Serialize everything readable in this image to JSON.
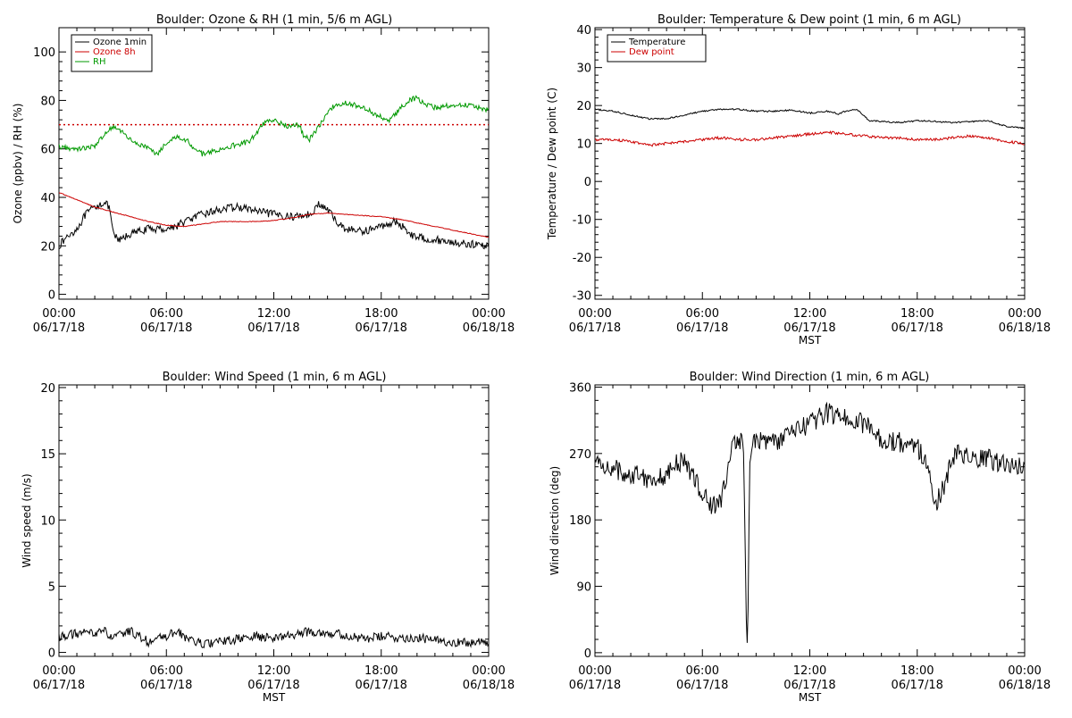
{
  "colors": {
    "black": "#000000",
    "red": "#cc0000",
    "green": "#009900",
    "background": "#ffffff"
  },
  "chart_data": [
    {
      "type": "line",
      "title": "Boulder: Ozone & RH (1 min, 5/6 m AGL)",
      "xlabel": "",
      "ylabel": "Ozone (ppbv) / RH (%)",
      "xlim": [
        "06/17/18 00:00",
        "06/18/18 00:00"
      ],
      "ylim": [
        -2,
        110
      ],
      "yticks": [
        0,
        20,
        40,
        60,
        80,
        100
      ],
      "xtick_labels": [
        {
          "time": "00:00",
          "date": "06/17/18"
        },
        {
          "time": "06:00",
          "date": "06/17/18"
        },
        {
          "time": "12:00",
          "date": "06/17/18"
        },
        {
          "time": "18:00",
          "date": "06/17/18"
        },
        {
          "time": "00:00",
          "date": "06/18/18"
        }
      ],
      "legend_position": "top-left",
      "reference_line": {
        "y": 70,
        "color": "#cc0000",
        "style": "dotted"
      },
      "series": [
        {
          "name": "Ozone 1min",
          "color": "#000000",
          "noise": 1.6,
          "points": [
            [
              0,
              20
            ],
            [
              0.5,
              24
            ],
            [
              1,
              27
            ],
            [
              1.5,
              33
            ],
            [
              2,
              36
            ],
            [
              2.5,
              38
            ],
            [
              2.8,
              36
            ],
            [
              3.0,
              26
            ],
            [
              3.3,
              22
            ],
            [
              4,
              25
            ],
            [
              5,
              27
            ],
            [
              6,
              27
            ],
            [
              6.5,
              28
            ],
            [
              7,
              30
            ],
            [
              8,
              33
            ],
            [
              9,
              35
            ],
            [
              10,
              36
            ],
            [
              10.7,
              35
            ],
            [
              11.2,
              34
            ],
            [
              12,
              33
            ],
            [
              13,
              32
            ],
            [
              14,
              33
            ],
            [
              14.5,
              37
            ],
            [
              15,
              35
            ],
            [
              15.5,
              30
            ],
            [
              16,
              27
            ],
            [
              17,
              26
            ],
            [
              18,
              28
            ],
            [
              18.7,
              30
            ],
            [
              19.2,
              28
            ],
            [
              19.8,
              24
            ],
            [
              20.5,
              23
            ],
            [
              21.5,
              22
            ],
            [
              22.5,
              21
            ],
            [
              24,
              20
            ]
          ]
        },
        {
          "name": "Ozone 8h",
          "color": "#cc0000",
          "noise": 0.15,
          "points": [
            [
              0,
              42
            ],
            [
              1,
              39
            ],
            [
              2,
              36
            ],
            [
              3,
              34
            ],
            [
              4,
              32
            ],
            [
              5,
              30
            ],
            [
              6,
              28.5
            ],
            [
              7,
              28
            ],
            [
              8,
              29
            ],
            [
              9,
              30
            ],
            [
              10,
              30
            ],
            [
              11,
              30
            ],
            [
              12,
              30.5
            ],
            [
              13,
              31.5
            ],
            [
              14,
              33
            ],
            [
              15,
              33.5
            ],
            [
              16,
              33
            ],
            [
              17,
              32.5
            ],
            [
              18,
              32
            ],
            [
              19,
              31
            ],
            [
              20,
              29.5
            ],
            [
              21,
              28
            ],
            [
              22,
              26.5
            ],
            [
              23,
              25
            ],
            [
              24,
              23.5
            ]
          ]
        },
        {
          "name": "RH",
          "color": "#009900",
          "noise": 1.1,
          "points": [
            [
              0,
              61
            ],
            [
              1,
              60
            ],
            [
              2,
              61
            ],
            [
              2.5,
              66
            ],
            [
              3,
              69
            ],
            [
              3.5,
              67
            ],
            [
              4,
              64
            ],
            [
              4.5,
              62
            ],
            [
              5,
              60
            ],
            [
              5.5,
              58
            ],
            [
              5.8,
              61
            ],
            [
              6.2,
              64
            ],
            [
              6.7,
              65
            ],
            [
              7.2,
              63
            ],
            [
              7.6,
              60
            ],
            [
              8,
              58
            ],
            [
              9,
              60
            ],
            [
              10,
              62
            ],
            [
              10.6,
              63
            ],
            [
              11,
              66
            ],
            [
              11.3,
              70
            ],
            [
              12,
              72
            ],
            [
              12.5,
              70
            ],
            [
              13,
              69
            ],
            [
              13.4,
              70
            ],
            [
              13.7,
              65
            ],
            [
              14,
              64
            ],
            [
              14.3,
              67
            ],
            [
              14.6,
              70
            ],
            [
              15,
              75
            ],
            [
              15.4,
              78
            ],
            [
              16,
              79
            ],
            [
              17,
              77
            ],
            [
              18,
              73
            ],
            [
              18.5,
              72
            ],
            [
              19,
              76
            ],
            [
              19.5,
              80
            ],
            [
              20,
              81
            ],
            [
              20.5,
              78
            ],
            [
              21,
              77
            ],
            [
              22,
              78
            ],
            [
              23,
              78
            ],
            [
              24,
              76
            ]
          ]
        }
      ]
    },
    {
      "type": "line",
      "title": "Boulder: Temperature & Dew point (1 min, 6 m AGL)",
      "xlabel": "MST",
      "ylabel": "Temperature / Dew point (C)",
      "xlim": [
        "06/17/18 00:00",
        "06/18/18 00:00"
      ],
      "ylim": [
        -31,
        40.5
      ],
      "yticks": [
        -30,
        -20,
        -10,
        0,
        10,
        20,
        30,
        40
      ],
      "xtick_labels": [
        {
          "time": "00:00",
          "date": "06/17/18"
        },
        {
          "time": "06:00",
          "date": "06/17/18"
        },
        {
          "time": "12:00",
          "date": "06/17/18"
        },
        {
          "time": "18:00",
          "date": "06/17/18"
        },
        {
          "time": "00:00",
          "date": "06/18/18"
        }
      ],
      "legend_position": "top-left",
      "series": [
        {
          "name": "Temperature",
          "color": "#000000",
          "noise": 0.2,
          "points": [
            [
              0,
              19
            ],
            [
              1,
              18.5
            ],
            [
              2,
              17.5
            ],
            [
              3,
              16.5
            ],
            [
              4,
              16.5
            ],
            [
              5,
              17.5
            ],
            [
              6,
              18.5
            ],
            [
              7,
              19
            ],
            [
              8,
              19
            ],
            [
              9,
              18.5
            ],
            [
              10,
              18.5
            ],
            [
              11,
              18.8
            ],
            [
              12,
              18
            ],
            [
              13,
              18.5
            ],
            [
              13.6,
              17.8
            ],
            [
              14,
              18.5
            ],
            [
              14.6,
              19
            ],
            [
              15,
              17.5
            ],
            [
              15.3,
              16
            ],
            [
              16,
              15.8
            ],
            [
              17,
              15.5
            ],
            [
              18,
              16
            ],
            [
              19,
              15.8
            ],
            [
              20,
              15.5
            ],
            [
              21,
              15.8
            ],
            [
              22,
              16
            ],
            [
              22.6,
              15
            ],
            [
              23,
              14.5
            ],
            [
              24,
              14
            ]
          ]
        },
        {
          "name": "Dew point",
          "color": "#cc0000",
          "noise": 0.35,
          "points": [
            [
              0,
              11
            ],
            [
              1,
              11
            ],
            [
              2,
              10.5
            ],
            [
              3,
              9.5
            ],
            [
              4,
              10
            ],
            [
              5,
              10.5
            ],
            [
              6,
              11
            ],
            [
              7,
              11.5
            ],
            [
              8,
              11
            ],
            [
              9,
              11
            ],
            [
              10,
              11.5
            ],
            [
              11,
              12
            ],
            [
              12,
              12.5
            ],
            [
              13,
              13
            ],
            [
              14,
              12.5
            ],
            [
              15,
              12
            ],
            [
              16,
              11.5
            ],
            [
              17,
              11.5
            ],
            [
              18,
              11
            ],
            [
              19,
              11
            ],
            [
              20,
              11.5
            ],
            [
              21,
              12
            ],
            [
              22,
              11.5
            ],
            [
              23,
              10.5
            ],
            [
              24,
              10
            ]
          ]
        }
      ]
    },
    {
      "type": "line",
      "title": "Boulder: Wind Speed (1 min, 6 m AGL)",
      "xlabel": "MST",
      "ylabel": "Wind speed (m/s)",
      "xlim": [
        "06/17/18 00:00",
        "06/18/18 00:00"
      ],
      "ylim": [
        -0.3,
        20.2
      ],
      "yticks": [
        0,
        5,
        10,
        15,
        20
      ],
      "xtick_labels": [
        {
          "time": "00:00",
          "date": "06/17/18"
        },
        {
          "time": "06:00",
          "date": "06/17/18"
        },
        {
          "time": "12:00",
          "date": "06/17/18"
        },
        {
          "time": "18:00",
          "date": "06/17/18"
        },
        {
          "time": "00:00",
          "date": "06/18/18"
        }
      ],
      "legend_position": "none",
      "series": [
        {
          "name": "",
          "color": "#000000",
          "noise": 0.35,
          "points": [
            [
              0,
              1.2
            ],
            [
              1,
              1.4
            ],
            [
              2,
              1.5
            ],
            [
              2.5,
              1.7
            ],
            [
              3,
              1.0
            ],
            [
              3.5,
              1.4
            ],
            [
              4,
              1.6
            ],
            [
              4.5,
              1.2
            ],
            [
              5,
              0.8
            ],
            [
              6,
              1.2
            ],
            [
              6.5,
              1.6
            ],
            [
              7,
              1.2
            ],
            [
              8,
              0.6
            ],
            [
              9,
              0.8
            ],
            [
              10,
              1.0
            ],
            [
              11,
              1.2
            ],
            [
              12,
              1.1
            ],
            [
              13,
              1.3
            ],
            [
              14,
              1.6
            ],
            [
              15,
              1.5
            ],
            [
              16,
              1.3
            ],
            [
              17,
              1.0
            ],
            [
              18,
              1.2
            ],
            [
              19,
              1.1
            ],
            [
              20,
              1.1
            ],
            [
              21,
              0.9
            ],
            [
              22,
              0.8
            ],
            [
              23,
              0.7
            ],
            [
              24,
              0.8
            ]
          ]
        }
      ]
    },
    {
      "type": "line",
      "title": "Boulder: Wind Direction (1 min, 6 m AGL)",
      "xlabel": "MST",
      "ylabel": "Wind direction (deg)",
      "xlim": [
        "06/17/18 00:00",
        "06/18/18 00:00"
      ],
      "ylim": [
        -5,
        363
      ],
      "yticks": [
        0,
        90,
        180,
        270,
        360
      ],
      "xtick_labels": [
        {
          "time": "00:00",
          "date": "06/17/18"
        },
        {
          "time": "06:00",
          "date": "06/17/18"
        },
        {
          "time": "12:00",
          "date": "06/17/18"
        },
        {
          "time": "18:00",
          "date": "06/17/18"
        },
        {
          "time": "00:00",
          "date": "06/18/18"
        }
      ],
      "legend_position": "none",
      "series": [
        {
          "name": "",
          "color": "#000000",
          "noise": 14,
          "points": [
            [
              0,
              258
            ],
            [
              1,
              250
            ],
            [
              2,
              240
            ],
            [
              2.5,
              245
            ],
            [
              3,
              235
            ],
            [
              4,
              240
            ],
            [
              4.5,
              255
            ],
            [
              5,
              260
            ],
            [
              5.5,
              240
            ],
            [
              6,
              215
            ],
            [
              6.5,
              200
            ],
            [
              7,
              205
            ],
            [
              7.3,
              230
            ],
            [
              7.7,
              280
            ],
            [
              8,
              290
            ],
            [
              8.3,
              285
            ],
            [
              8.45,
              40
            ],
            [
              8.5,
              5
            ],
            [
              8.55,
              60
            ],
            [
              8.65,
              270
            ],
            [
              9,
              290
            ],
            [
              10,
              285
            ],
            [
              10.5,
              290
            ],
            [
              11,
              300
            ],
            [
              12,
              310
            ],
            [
              13,
              325
            ],
            [
              14,
              320
            ],
            [
              15,
              310
            ],
            [
              15.5,
              300
            ],
            [
              16,
              290
            ],
            [
              17,
              285
            ],
            [
              18,
              280
            ],
            [
              18.5,
              260
            ],
            [
              19,
              200
            ],
            [
              19.5,
              225
            ],
            [
              20,
              265
            ],
            [
              20.5,
              270
            ],
            [
              21,
              260
            ],
            [
              22,
              262
            ],
            [
              23,
              255
            ],
            [
              24,
              250
            ]
          ]
        }
      ]
    }
  ]
}
